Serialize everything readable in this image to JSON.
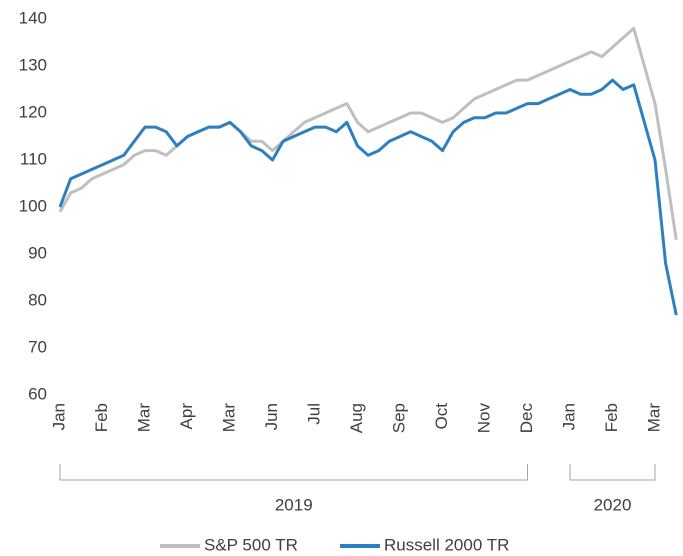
{
  "chart_data": {
    "type": "line",
    "categories": [
      "Jan",
      null,
      null,
      null,
      "Feb",
      null,
      null,
      null,
      "Mar",
      null,
      null,
      null,
      "Apr",
      null,
      null,
      null,
      "Mar",
      null,
      null,
      null,
      "Jun",
      null,
      null,
      null,
      "Jul",
      null,
      null,
      null,
      "Aug",
      null,
      null,
      null,
      "Sep",
      null,
      null,
      null,
      "Oct",
      null,
      null,
      null,
      "Nov",
      null,
      null,
      null,
      "Dec",
      null,
      null,
      null,
      "Jan",
      null,
      null,
      null,
      "Feb",
      null,
      null,
      null,
      "Mar",
      null,
      null
    ],
    "groups": [
      "2019",
      "2020"
    ],
    "series": [
      {
        "name": "S&P 500 TR",
        "color": "#bfbfbf",
        "values": [
          99,
          103,
          104,
          106,
          107,
          108,
          109,
          111,
          112,
          112,
          111,
          113,
          115,
          116,
          117,
          117,
          118,
          116,
          114,
          114,
          112,
          114,
          116,
          118,
          119,
          120,
          121,
          122,
          118,
          116,
          117,
          118,
          119,
          120,
          120,
          119,
          118,
          119,
          121,
          123,
          124,
          125,
          126,
          127,
          127,
          128,
          129,
          130,
          131,
          132,
          133,
          132,
          134,
          136,
          138,
          130,
          122,
          108,
          93
        ]
      },
      {
        "name": "Russell 2000 TR",
        "color": "#2e7fc0",
        "values": [
          100,
          106,
          107,
          108,
          109,
          110,
          111,
          114,
          117,
          117,
          116,
          113,
          115,
          116,
          117,
          117,
          118,
          116,
          113,
          112,
          110,
          114,
          115,
          116,
          117,
          117,
          116,
          118,
          113,
          111,
          112,
          114,
          115,
          116,
          115,
          114,
          112,
          116,
          118,
          119,
          119,
          120,
          120,
          121,
          122,
          122,
          123,
          124,
          125,
          124,
          124,
          125,
          127,
          125,
          126,
          118,
          110,
          88,
          77
        ]
      }
    ],
    "ylim": [
      60,
      140
    ],
    "yticks": [
      60,
      70,
      80,
      90,
      100,
      110,
      120,
      130,
      140
    ]
  }
}
